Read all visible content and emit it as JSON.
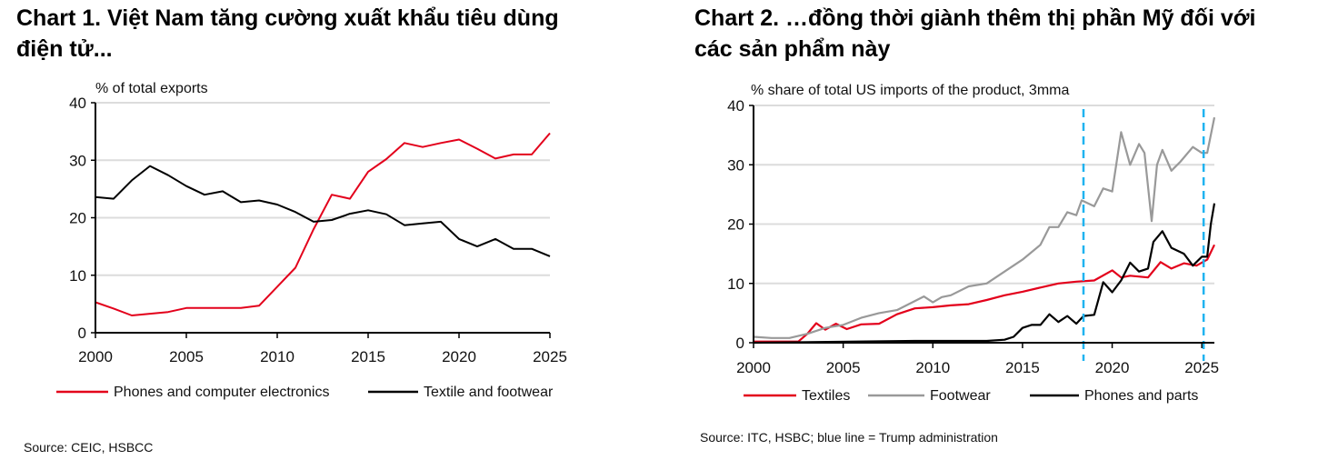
{
  "chart_data": [
    {
      "type": "line",
      "title_lines": [
        "Chart 1. Việt Nam tăng cường xuất khẩu tiêu dùng",
        "điện tử..."
      ],
      "ylabel": "% of total exports",
      "xlim": [
        2000,
        2025
      ],
      "ylim": [
        0,
        40
      ],
      "xticks": [
        2000,
        2005,
        2010,
        2015,
        2020,
        2025
      ],
      "yticks": [
        0,
        10,
        20,
        30,
        40
      ],
      "grid": "horizontal",
      "legend_placement": "bottom",
      "source": "Source: CEIC, HSBCC",
      "x": [
        2000,
        2001,
        2002,
        2003,
        2004,
        2005,
        2006,
        2007,
        2008,
        2009,
        2010,
        2011,
        2012,
        2013,
        2014,
        2015,
        2016,
        2017,
        2018,
        2019,
        2020,
        2021,
        2022,
        2023,
        2024,
        2025
      ],
      "series": [
        {
          "name": "Phones and computer electronics",
          "color": "#e3001b",
          "values": [
            5.3,
            4.2,
            3.0,
            3.3,
            3.6,
            4.3,
            4.3,
            4.3,
            4.3,
            4.7,
            8.0,
            11.3,
            18.0,
            24.0,
            23.3,
            28.0,
            30.2,
            33.0,
            32.3,
            33.0,
            33.6,
            32.0,
            30.3,
            31.0,
            31.0,
            34.7
          ]
        },
        {
          "name": "Textile and footwear",
          "color": "#000000",
          "values": [
            23.6,
            23.3,
            26.5,
            29.0,
            27.4,
            25.5,
            24.0,
            24.6,
            22.7,
            23.0,
            22.3,
            21.0,
            19.3,
            19.6,
            20.7,
            21.3,
            20.6,
            18.7,
            19.0,
            19.3,
            16.3,
            15.0,
            16.3,
            14.6,
            14.6,
            13.3
          ]
        }
      ]
    },
    {
      "type": "line",
      "title_lines": [
        "Chart 2. …đồng thời giành thêm thị phần Mỹ đối với",
        "các sản phẩm này"
      ],
      "ylabel": "% share of total US imports of the product, 3mma",
      "xlim": [
        2000,
        2025.7
      ],
      "ylim": [
        0,
        40
      ],
      "xticks": [
        2000,
        2005,
        2010,
        2015,
        2020,
        2025
      ],
      "yticks": [
        0,
        10,
        20,
        30,
        40
      ],
      "grid": "horizontal",
      "legend_placement": "bottom",
      "source": "Source: ITC, HSBC; blue line = Trump administration",
      "vlines": {
        "color": "#1fb3f0",
        "x": [
          2018.4,
          2025.1
        ]
      },
      "series": [
        {
          "name": "Textiles",
          "color": "#e3001b",
          "x": [
            2000,
            2002.5,
            2003,
            2003.5,
            2004,
            2004.6,
            2005.2,
            2006,
            2007,
            2008,
            2009,
            2010,
            2011,
            2012,
            2013,
            2014,
            2015,
            2016,
            2017,
            2018,
            2019,
            2020,
            2020.5,
            2021,
            2022,
            2022.7,
            2023.3,
            2024,
            2024.7,
            2025.3,
            2025.7
          ],
          "values": [
            0.2,
            0.2,
            1.5,
            3.3,
            2.2,
            3.2,
            2.3,
            3.1,
            3.2,
            4.8,
            5.8,
            6.0,
            6.3,
            6.5,
            7.2,
            8.0,
            8.6,
            9.3,
            10.0,
            10.3,
            10.5,
            12.2,
            11.0,
            11.3,
            11.0,
            13.6,
            12.5,
            13.4,
            13.0,
            14.0,
            16.5
          ]
        },
        {
          "name": "Footwear",
          "color": "#999999",
          "x": [
            2000,
            2001,
            2002,
            2003,
            2004,
            2005,
            2006,
            2007,
            2008,
            2009.5,
            2010,
            2010.5,
            2011,
            2012,
            2013,
            2014,
            2015,
            2016,
            2016.5,
            2017,
            2017.5,
            2018,
            2018.3,
            2019,
            2019.5,
            2020,
            2020.5,
            2021,
            2021.5,
            2021.8,
            2022.2,
            2022.5,
            2022.8,
            2023.3,
            2023.8,
            2024.5,
            2025,
            2025.3,
            2025.7
          ],
          "values": [
            1.0,
            0.8,
            0.8,
            1.5,
            2.5,
            3.0,
            4.2,
            5.0,
            5.5,
            7.8,
            6.8,
            7.7,
            8.0,
            9.5,
            10.0,
            12.0,
            14.0,
            16.5,
            19.5,
            19.5,
            22.0,
            21.5,
            24.0,
            23.0,
            26.0,
            25.5,
            35.5,
            30.0,
            33.5,
            32.0,
            20.5,
            30.0,
            32.5,
            29.0,
            30.5,
            33.0,
            32.0,
            32.0,
            38.0
          ]
        },
        {
          "name": "Phones and parts",
          "color": "#000000",
          "x": [
            2000,
            2009,
            2013,
            2014,
            2014.5,
            2015,
            2015.5,
            2016,
            2016.5,
            2017,
            2017.5,
            2018,
            2018.4,
            2019,
            2019.5,
            2020,
            2020.5,
            2021,
            2021.5,
            2022,
            2022.3,
            2022.8,
            2023.3,
            2024,
            2024.5,
            2025,
            2025.3,
            2025.5,
            2025.7
          ],
          "values": [
            0,
            0.3,
            0.3,
            0.5,
            1.0,
            2.5,
            3.0,
            3.0,
            4.8,
            3.5,
            4.5,
            3.2,
            4.5,
            4.7,
            10.2,
            8.5,
            10.5,
            13.5,
            12.0,
            12.5,
            17.0,
            18.8,
            16.0,
            15.0,
            13.0,
            14.5,
            14.5,
            20.0,
            23.5
          ]
        }
      ]
    }
  ]
}
